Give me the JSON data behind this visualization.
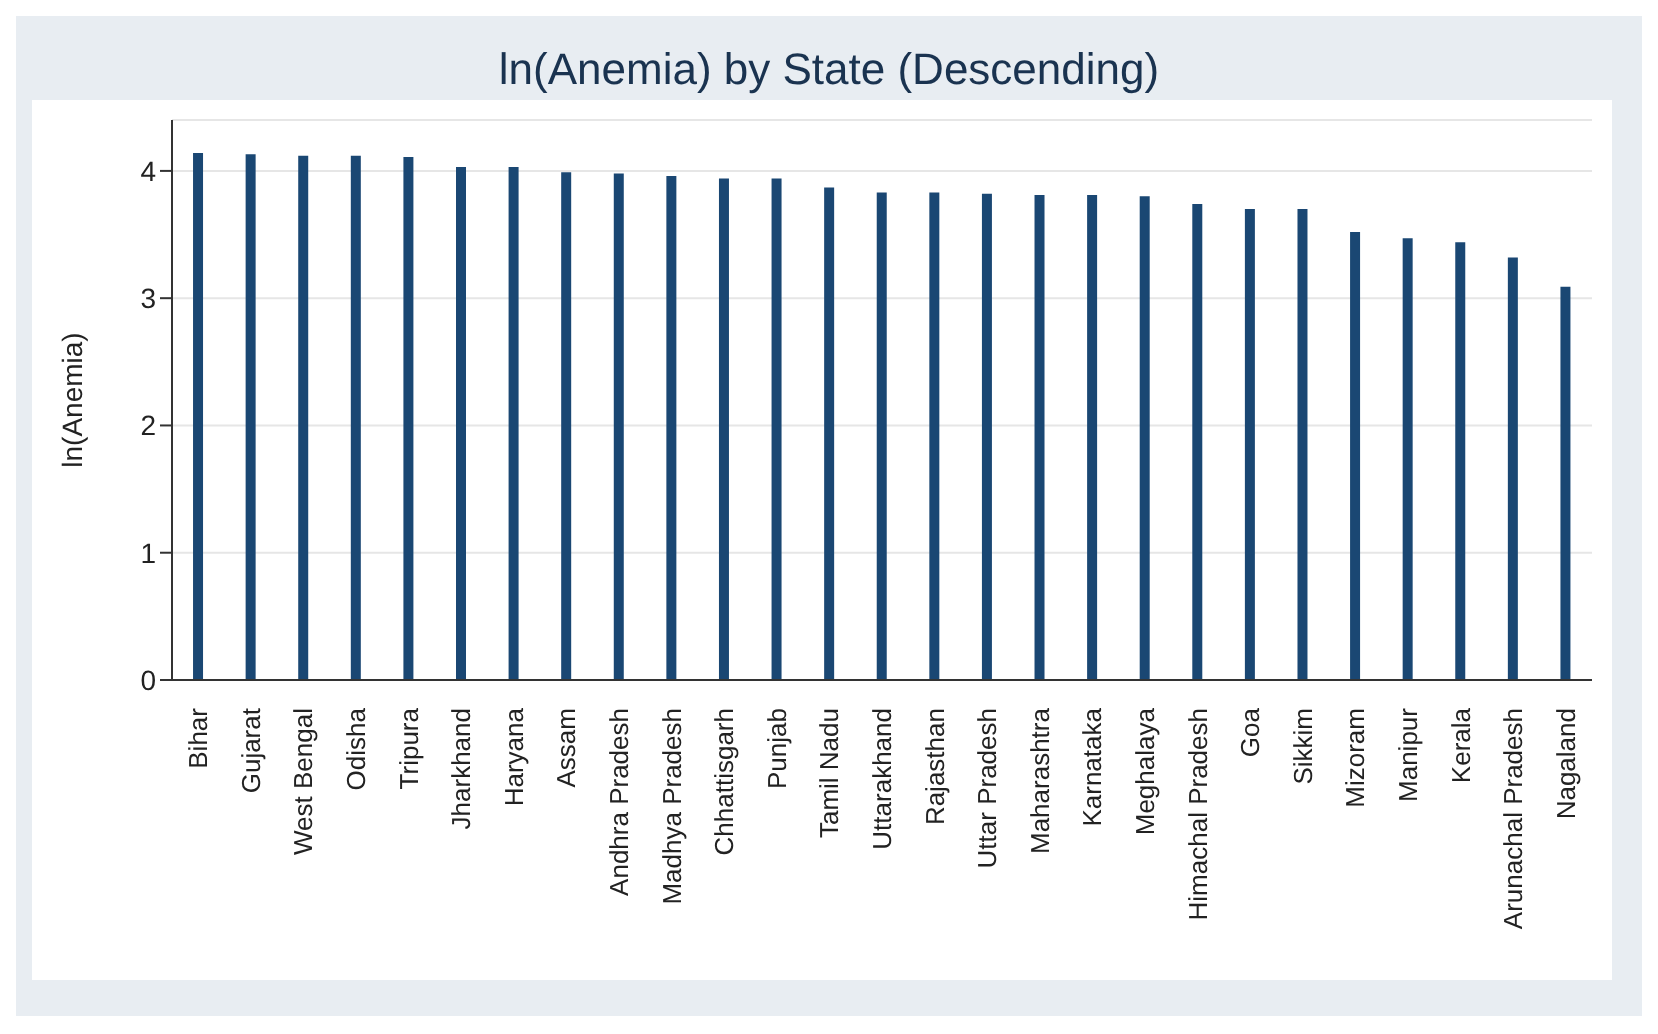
{
  "chart_data": {
    "type": "bar",
    "title": "ln(Anemia) by State (Descending)",
    "ylabel": "ln(Anemia)",
    "categories": [
      "Bihar",
      "Gujarat",
      "West Bengal",
      "Odisha",
      "Tripura",
      "Jharkhand",
      "Haryana",
      "Assam",
      "Andhra Pradesh",
      "Madhya Pradesh",
      "Chhattisgarh",
      "Punjab",
      "Tamil Nadu",
      "Uttarakhand",
      "Rajasthan",
      "Uttar Pradesh",
      "Maharashtra",
      "Karnataka",
      "Meghalaya",
      "Himachal Pradesh",
      "Goa",
      "Sikkim",
      "Mizoram",
      "Manipur",
      "Kerala",
      "Arunachal Pradesh",
      "Nagaland"
    ],
    "values": [
      4.14,
      4.13,
      4.12,
      4.12,
      4.11,
      4.03,
      4.03,
      3.99,
      3.98,
      3.96,
      3.94,
      3.94,
      3.87,
      3.83,
      3.83,
      3.82,
      3.81,
      3.81,
      3.8,
      3.74,
      3.7,
      3.7,
      3.52,
      3.47,
      3.44,
      3.32,
      3.09
    ],
    "color": "#1a4773",
    "ylim": [
      0,
      4.4
    ],
    "yticks": [
      0,
      1,
      2,
      3,
      4
    ],
    "grid": "y"
  }
}
